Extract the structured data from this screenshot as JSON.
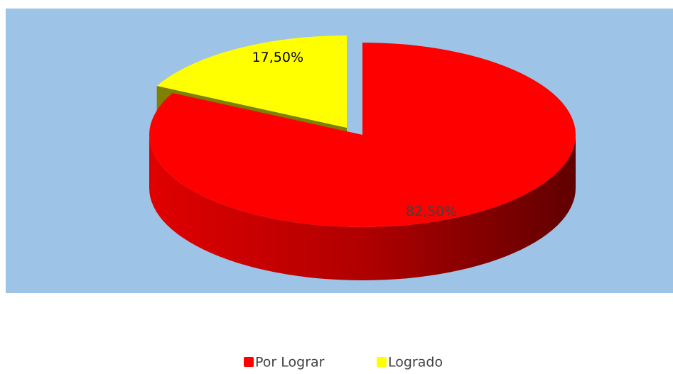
{
  "chart_data": {
    "type": "pie",
    "categories": [
      "Por Lograr",
      "Logrado"
    ],
    "values": [
      82.5,
      17.5
    ],
    "value_labels": [
      "82,50%",
      "17,50%"
    ],
    "colors": [
      "#ff0000",
      "#ffff00"
    ],
    "legend": "bottom"
  }
}
